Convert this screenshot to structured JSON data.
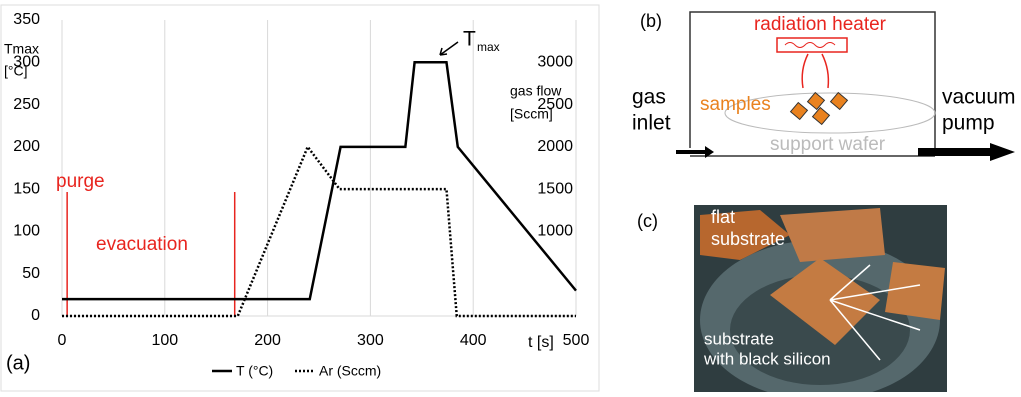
{
  "chart_data": {
    "type": "line",
    "panel_label": "(a)",
    "x_label": "t [s]",
    "y_label": [
      "Tmax",
      "[°C]"
    ],
    "y2_label": [
      "gas flow",
      "[Sccm]"
    ],
    "xlim": [
      0,
      500
    ],
    "xticks": [
      0,
      100,
      200,
      300,
      400,
      500
    ],
    "ylim": [
      0,
      350
    ],
    "yticks": [
      0,
      50,
      100,
      150,
      200,
      250,
      300,
      350
    ],
    "y2lim": [
      0,
      3500
    ],
    "y2ticks": [
      1000,
      1500,
      2000,
      2500,
      3000
    ],
    "grid": true,
    "series": [
      {
        "name": "T (°C)",
        "color": "#000000",
        "style": "solid",
        "x": [
          0,
          241,
          271,
          334,
          343,
          374,
          385,
          500
        ],
        "values": [
          20,
          20,
          200,
          200,
          300,
          300,
          200,
          30
        ]
      },
      {
        "name": "Ar (Sccm)",
        "color": "#000000",
        "style": "dotted",
        "axis": "y2",
        "x": [
          0,
          171,
          239,
          270,
          374,
          384,
          500
        ],
        "values": [
          0,
          0,
          2000,
          1500,
          1500,
          0,
          0
        ]
      }
    ],
    "vlines": {
      "color": "#e8251f",
      "x": [
        5,
        168
      ]
    },
    "annotations": [
      {
        "text": "purge",
        "color": "#e8251f"
      },
      {
        "text": "evacuation",
        "color": "#e8251f"
      },
      {
        "text": "T",
        "sub": "max",
        "color": "#000000"
      }
    ]
  },
  "panel_b": {
    "label": "(b)",
    "heater": "radiation heater",
    "samples": "samples",
    "inlet": [
      "gas",
      "inlet"
    ],
    "outlet": [
      "vacuum",
      "pump"
    ],
    "wafer": "support wafer"
  },
  "panel_c": {
    "label": "(c)",
    "flat": [
      "flat",
      "substrate"
    ],
    "black": [
      "substrate",
      "with black silicon"
    ]
  }
}
